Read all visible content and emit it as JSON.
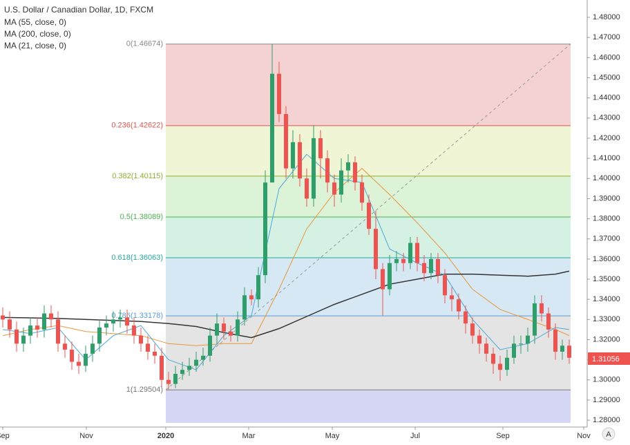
{
  "chart_data": {
    "type": "candlestick",
    "title": "U.S. Dollar / Canadian Dollar, 1D, FXCM",
    "ylim": [
      1.2766,
      1.4886
    ],
    "yticks": [
      {
        "value": 1.28,
        "label": "1.28000"
      },
      {
        "value": 1.29,
        "label": "1.29000"
      },
      {
        "value": 1.3,
        "label": "1.30000"
      },
      {
        "value": 1.31,
        "label": "1.31000"
      },
      {
        "value": 1.32,
        "label": "1.32000"
      },
      {
        "value": 1.33,
        "label": "1.33000"
      },
      {
        "value": 1.34,
        "label": "1.34000"
      },
      {
        "value": 1.35,
        "label": "1.35000"
      },
      {
        "value": 1.36,
        "label": "1.36000"
      },
      {
        "value": 1.37,
        "label": "1.37000"
      },
      {
        "value": 1.38,
        "label": "1.38000"
      },
      {
        "value": 1.39,
        "label": "1.39000"
      },
      {
        "value": 1.4,
        "label": "1.40000"
      },
      {
        "value": 1.41,
        "label": "1.41000"
      },
      {
        "value": 1.42,
        "label": "1.42000"
      },
      {
        "value": 1.43,
        "label": "1.43000"
      },
      {
        "value": 1.44,
        "label": "1.44000"
      },
      {
        "value": 1.45,
        "label": "1.45000"
      },
      {
        "value": 1.46,
        "label": "1.46000"
      },
      {
        "value": 1.47,
        "label": "1.47000"
      },
      {
        "value": 1.48,
        "label": "1.48000"
      }
    ],
    "xlim": [
      -0.4,
      84.4
    ],
    "xticks": [
      {
        "value": 0,
        "label": "Sep"
      },
      {
        "value": 12.1,
        "label": "Nov"
      },
      {
        "value": 23.6,
        "label": "2020"
      },
      {
        "value": 35.6,
        "label": "Mar"
      },
      {
        "value": 47.7,
        "label": "May"
      },
      {
        "value": 59.7,
        "label": "Jul"
      },
      {
        "value": 72.4,
        "label": "Sep"
      },
      {
        "value": 84.1,
        "label": "Nov"
      }
    ],
    "up_color": "#2e9e6a",
    "down_color": "#ef5350",
    "open": [
      1.332,
      1.33,
      1.325,
      1.318,
      1.322,
      1.327,
      1.325,
      1.333,
      1.33,
      1.318,
      1.315,
      1.309,
      1.307,
      1.313,
      1.318,
      1.326,
      1.328,
      1.33,
      1.331,
      1.327,
      1.322,
      1.318,
      1.314,
      1.312,
      1.3,
      1.298,
      1.303,
      1.305,
      1.307,
      1.31,
      1.312,
      1.322,
      1.328,
      1.324,
      1.322,
      1.33,
      1.342,
      1.34,
      1.352,
      1.398,
      1.452,
      1.432,
      1.405,
      1.418,
      1.4,
      1.39,
      1.42,
      1.41,
      1.398,
      1.392,
      1.404,
      1.408,
      1.398,
      1.388,
      1.375,
      1.355,
      1.345,
      1.358,
      1.36,
      1.358,
      1.368,
      1.358,
      1.353,
      1.36,
      1.352,
      1.342,
      1.34,
      1.334,
      1.328,
      1.322,
      1.318,
      1.313,
      1.308,
      1.305,
      1.311,
      1.318,
      1.318,
      1.322,
      1.338,
      1.333,
      1.325,
      1.314,
      1.317
    ],
    "high": [
      1.336,
      1.334,
      1.329,
      1.326,
      1.331,
      1.331,
      1.337,
      1.337,
      1.334,
      1.322,
      1.319,
      1.313,
      1.317,
      1.322,
      1.33,
      1.332,
      1.334,
      1.335,
      1.335,
      1.331,
      1.326,
      1.322,
      1.318,
      1.316,
      1.304,
      1.307,
      1.309,
      1.311,
      1.314,
      1.316,
      1.326,
      1.333,
      1.331,
      1.327,
      1.334,
      1.346,
      1.345,
      1.356,
      1.404,
      1.4667,
      1.458,
      1.436,
      1.424,
      1.422,
      1.405,
      1.4265,
      1.424,
      1.414,
      1.402,
      1.41,
      1.412,
      1.411,
      1.402,
      1.392,
      1.384,
      1.358,
      1.362,
      1.364,
      1.363,
      1.371,
      1.371,
      1.362,
      1.363,
      1.363,
      1.355,
      1.346,
      1.343,
      1.337,
      1.331,
      1.325,
      1.321,
      1.316,
      1.312,
      1.315,
      1.322,
      1.322,
      1.326,
      1.342,
      1.342,
      1.336,
      1.328,
      1.32,
      1.32
    ],
    "low": [
      1.326,
      1.321,
      1.314,
      1.314,
      1.318,
      1.321,
      1.321,
      1.326,
      1.314,
      1.311,
      1.305,
      1.303,
      1.304,
      1.309,
      1.314,
      1.322,
      1.324,
      1.326,
      1.323,
      1.318,
      1.314,
      1.31,
      1.308,
      1.2965,
      1.295,
      1.296,
      1.3,
      1.302,
      1.304,
      1.307,
      1.309,
      1.318,
      1.32,
      1.319,
      1.319,
      1.327,
      1.337,
      1.336,
      1.348,
      1.4,
      1.428,
      1.4,
      1.4,
      1.396,
      1.386,
      1.386,
      1.4,
      1.393,
      1.386,
      1.388,
      1.398,
      1.394,
      1.384,
      1.372,
      1.35,
      1.332,
      1.342,
      1.354,
      1.354,
      1.355,
      1.354,
      1.349,
      1.35,
      1.348,
      1.338,
      1.334,
      1.33,
      1.323,
      1.318,
      1.313,
      1.309,
      1.303,
      1.2995,
      1.302,
      1.308,
      1.313,
      1.314,
      1.318,
      1.329,
      1.321,
      1.31,
      1.31,
      1.308
    ],
    "close": [
      1.33,
      1.325,
      1.318,
      1.322,
      1.327,
      1.325,
      1.333,
      1.33,
      1.318,
      1.315,
      1.309,
      1.307,
      1.313,
      1.318,
      1.326,
      1.328,
      1.33,
      1.331,
      1.327,
      1.322,
      1.318,
      1.314,
      1.312,
      1.3,
      1.298,
      1.303,
      1.305,
      1.307,
      1.31,
      1.312,
      1.322,
      1.328,
      1.324,
      1.322,
      1.33,
      1.342,
      1.34,
      1.352,
      1.398,
      1.452,
      1.432,
      1.405,
      1.418,
      1.4,
      1.39,
      1.42,
      1.41,
      1.398,
      1.392,
      1.404,
      1.408,
      1.398,
      1.388,
      1.375,
      1.355,
      1.345,
      1.358,
      1.36,
      1.358,
      1.368,
      1.358,
      1.353,
      1.36,
      1.352,
      1.342,
      1.34,
      1.334,
      1.328,
      1.322,
      1.318,
      1.313,
      1.308,
      1.305,
      1.311,
      1.318,
      1.318,
      1.322,
      1.338,
      1.333,
      1.325,
      1.314,
      1.317,
      1.311
    ],
    "series": [
      {
        "name": "MA (55, close, 0)",
        "color": "#e8963a",
        "x": [
          0,
          4,
          8,
          12,
          16,
          20,
          24,
          28,
          32,
          36,
          40,
          44,
          48,
          52,
          56,
          60,
          64,
          68,
          72,
          76,
          80,
          82
        ],
        "values": [
          1.322,
          1.325,
          1.327,
          1.324,
          1.323,
          1.322,
          1.318,
          1.317,
          1.318,
          1.318,
          1.345,
          1.375,
          1.393,
          1.405,
          1.392,
          1.378,
          1.363,
          1.345,
          1.335,
          1.33,
          1.325,
          1.322
        ]
      },
      {
        "name": "MA (200, close, 0)",
        "color": "#333333",
        "x": [
          0,
          4,
          8,
          12,
          16,
          20,
          24,
          28,
          32,
          36,
          40,
          44,
          48,
          52,
          56,
          60,
          64,
          68,
          72,
          76,
          80,
          82
        ],
        "values": [
          1.331,
          1.3308,
          1.3305,
          1.33,
          1.3295,
          1.329,
          1.328,
          1.3265,
          1.3235,
          1.321,
          1.3255,
          1.3315,
          1.3375,
          1.3425,
          1.3475,
          1.35,
          1.3525,
          1.3525,
          1.352,
          1.3515,
          1.3525,
          1.354
        ]
      },
      {
        "name": "MA (21, close, 0)",
        "color": "#4aa8d8",
        "x": [
          0,
          4,
          8,
          12,
          16,
          20,
          24,
          28,
          32,
          36,
          40,
          44,
          48,
          52,
          56,
          60,
          64,
          68,
          72,
          76,
          80,
          82
        ],
        "values": [
          1.325,
          1.323,
          1.326,
          1.31,
          1.322,
          1.327,
          1.31,
          1.305,
          1.322,
          1.332,
          1.395,
          1.412,
          1.4,
          1.398,
          1.365,
          1.358,
          1.352,
          1.33,
          1.315,
          1.318,
          1.326,
          1.325
        ]
      }
    ],
    "fib": [
      {
        "value": 1.46674,
        "label": "0(1.46674)",
        "color": "#888888",
        "fill": "#f5d2d2"
      },
      {
        "value": 1.42622,
        "label": "0.236(1.42622)",
        "color": "#e0524f",
        "fill": "#eff5d5"
      },
      {
        "value": 1.40115,
        "label": "0.382(1.40115)",
        "color": "#8dad2e",
        "fill": "#dcf3d8"
      },
      {
        "value": 1.38089,
        "label": "0.5(1.38089)",
        "color": "#4caf50",
        "fill": "#d5f1e4"
      },
      {
        "value": 1.36063,
        "label": "0.618(1.36063)",
        "color": "#26a69a",
        "fill": "#d5e8f4"
      },
      {
        "value": 1.33178,
        "label": "0.786(1.33178)",
        "color": "#5a9bd5",
        "fill": "#e4e4e4"
      },
      {
        "value": 1.29504,
        "label": "1(1.29504)",
        "color": "#787878",
        "fill": "#d6d6f5"
      }
    ],
    "last_price": 1.31056,
    "last_price_color": "#ef5350"
  },
  "ui": {
    "auto_button": "A"
  }
}
